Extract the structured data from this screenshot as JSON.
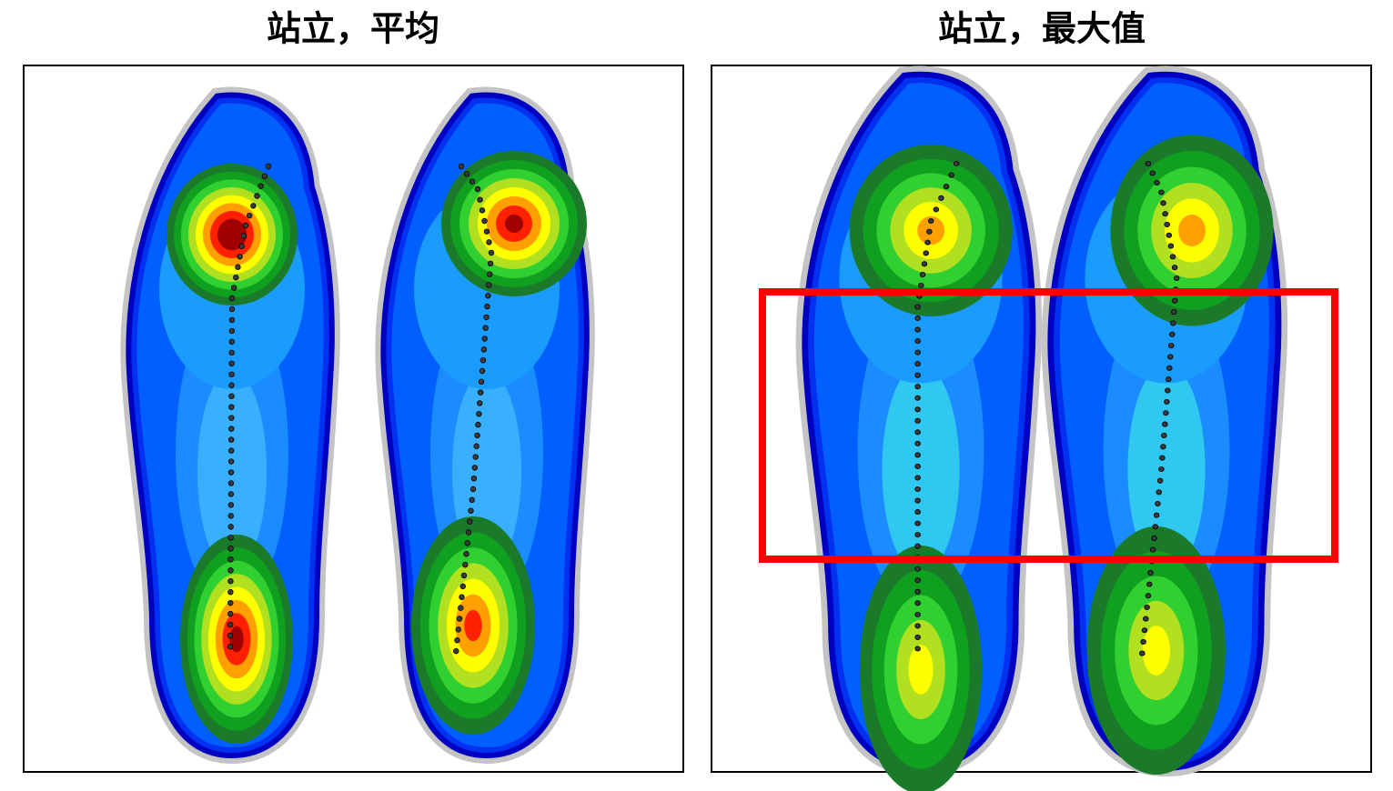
{
  "panels": [
    {
      "title": "站立，平均"
    },
    {
      "title": "站立，最大值"
    }
  ]
}
